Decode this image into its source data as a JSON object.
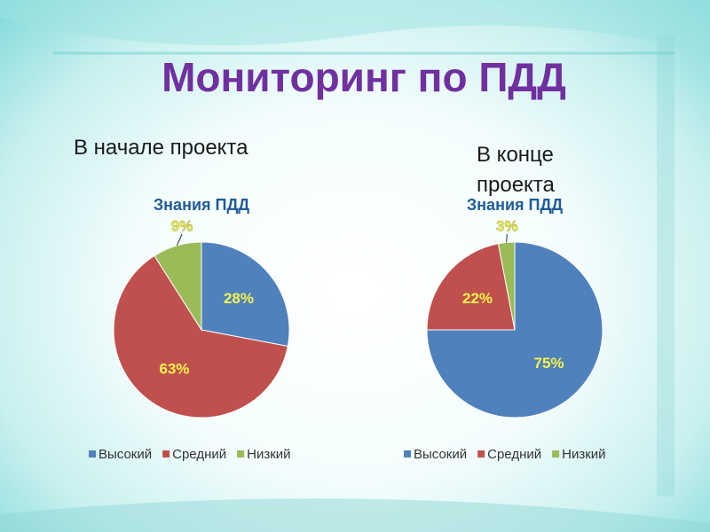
{
  "title": "Мониторинг по ПДД",
  "chart_data": [
    {
      "type": "pie",
      "subtitle": "В начале проекта",
      "title": "Знания ПДД",
      "categories": [
        "Высокий",
        "Средний",
        "Низкий"
      ],
      "values": [
        28,
        63,
        9
      ],
      "value_labels": [
        "28%",
        "63%",
        "9%"
      ],
      "colors": [
        "#4f81bd",
        "#c0504d",
        "#9bbb59"
      ]
    },
    {
      "type": "pie",
      "subtitle": "В конце проекта",
      "title": "Знания ПДД",
      "categories": [
        "Высокий",
        "Средний",
        "Низкий"
      ],
      "values": [
        75,
        22,
        3
      ],
      "value_labels": [
        "75%",
        "22%",
        "3%"
      ],
      "colors": [
        "#4f81bd",
        "#c0504d",
        "#9bbb59"
      ]
    }
  ]
}
